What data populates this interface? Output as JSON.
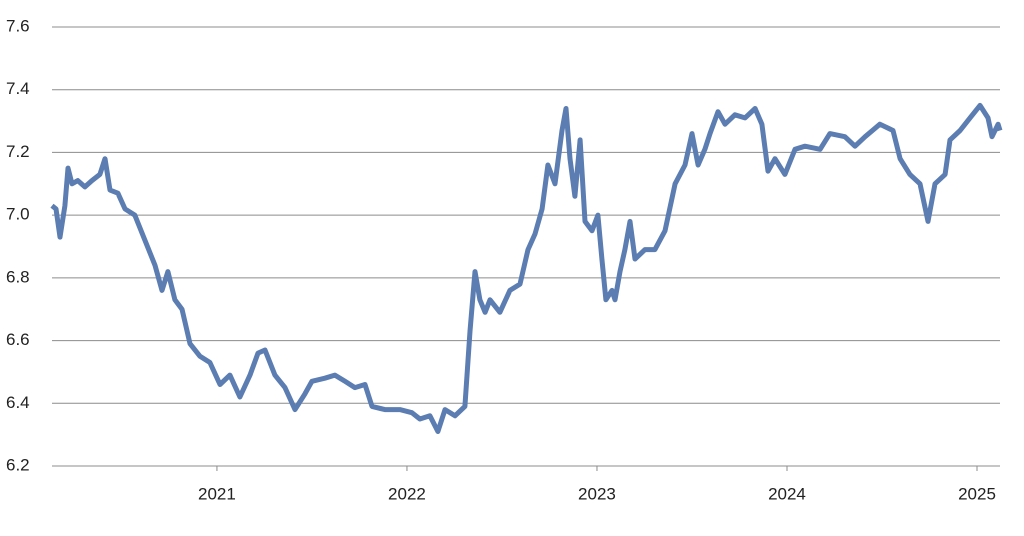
{
  "chart_data": {
    "type": "line",
    "x": [
      2020.132,
      2020.153,
      2020.174,
      2020.2,
      2020.216,
      2020.237,
      2020.268,
      2020.305,
      2020.342,
      2020.384,
      2020.411,
      2020.437,
      2020.479,
      2020.516,
      2020.568,
      2020.621,
      2020.674,
      2020.711,
      2020.742,
      2020.779,
      2020.816,
      2020.858,
      2020.911,
      2020.963,
      2021.016,
      2021.068,
      2021.121,
      2021.174,
      2021.216,
      2021.253,
      2021.305,
      2021.358,
      2021.411,
      2021.463,
      2021.5,
      2021.568,
      2021.621,
      2021.674,
      2021.726,
      2021.779,
      2021.816,
      2021.884,
      2021.963,
      2022.026,
      2022.068,
      2022.121,
      2022.163,
      2022.2,
      2022.253,
      2022.305,
      2022.332,
      2022.358,
      2022.384,
      2022.411,
      2022.437,
      2022.489,
      2022.542,
      2022.595,
      2022.637,
      2022.674,
      2022.711,
      2022.742,
      2022.779,
      2022.816,
      2022.837,
      2022.858,
      2022.884,
      2022.911,
      2022.937,
      2022.974,
      2023.005,
      2023.026,
      2023.047,
      2023.079,
      2023.095,
      2023.121,
      2023.147,
      2023.174,
      2023.2,
      2023.253,
      2023.305,
      2023.358,
      2023.411,
      2023.463,
      2023.5,
      2023.532,
      2023.568,
      2023.595,
      2023.637,
      2023.674,
      2023.726,
      2023.779,
      2023.832,
      2023.868,
      2023.9,
      2023.937,
      2023.989,
      2024.042,
      2024.095,
      2024.174,
      2024.226,
      2024.305,
      2024.358,
      2024.411,
      2024.489,
      2024.558,
      2024.595,
      2024.647,
      2024.7,
      2024.742,
      2024.779,
      2024.832,
      2024.858,
      2024.911,
      2024.963,
      2025.016,
      2025.058,
      2025.079,
      2025.111,
      2025.121
    ],
    "series": [
      {
        "color": "#5b7db1",
        "values": [
          7.03,
          7.02,
          6.93,
          7.03,
          7.15,
          7.1,
          7.11,
          7.09,
          7.11,
          7.13,
          7.18,
          7.08,
          7.07,
          7.02,
          7.0,
          6.92,
          6.84,
          6.76,
          6.82,
          6.73,
          6.7,
          6.59,
          6.55,
          6.53,
          6.46,
          6.49,
          6.42,
          6.49,
          6.56,
          6.57,
          6.49,
          6.45,
          6.38,
          6.43,
          6.47,
          6.48,
          6.49,
          6.47,
          6.45,
          6.46,
          6.39,
          6.38,
          6.38,
          6.37,
          6.35,
          6.36,
          6.31,
          6.38,
          6.36,
          6.39,
          6.63,
          6.82,
          6.73,
          6.69,
          6.73,
          6.69,
          6.76,
          6.78,
          6.89,
          6.94,
          7.02,
          7.16,
          7.1,
          7.27,
          7.34,
          7.18,
          7.06,
          7.24,
          6.98,
          6.95,
          7.0,
          6.86,
          6.73,
          6.76,
          6.73,
          6.82,
          6.89,
          6.98,
          6.86,
          6.89,
          6.89,
          6.95,
          7.1,
          7.16,
          7.26,
          7.16,
          7.21,
          7.26,
          7.33,
          7.29,
          7.32,
          7.31,
          7.34,
          7.29,
          7.14,
          7.18,
          7.13,
          7.21,
          7.22,
          7.21,
          7.26,
          7.25,
          7.22,
          7.25,
          7.29,
          7.27,
          7.18,
          7.13,
          7.1,
          6.98,
          7.1,
          7.13,
          7.24,
          7.27,
          7.31,
          7.35,
          7.31,
          7.25,
          7.29,
          7.27
        ]
      }
    ],
    "xlim": [
      2020.132,
      2025.121
    ],
    "xticks": [
      2021,
      2022,
      2023,
      2024,
      2025
    ],
    "ylim": [
      6.2,
      7.6
    ],
    "yticks": [
      6.2,
      6.4,
      6.6,
      6.8,
      {
        "value": 7,
        "label": "7.0"
      },
      7.2,
      7.4,
      7.6
    ],
    "grid": true
  }
}
